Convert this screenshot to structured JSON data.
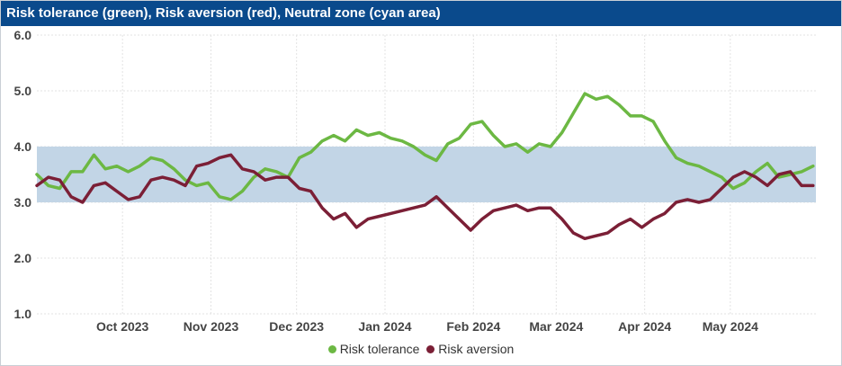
{
  "header": {
    "title": "Risk tolerance (green), Risk aversion (red), Neutral zone (cyan area)"
  },
  "colors": {
    "header_bg": "#0a4a8c",
    "risk_tolerance": "#6cb843",
    "risk_aversion": "#7b1f36",
    "neutral_zone": "#c2d5e6",
    "grid": "#e3e3e3"
  },
  "chart_data": {
    "type": "line",
    "title": "Risk tolerance (green), Risk aversion (red), Neutral zone (cyan area)",
    "xlabel": "",
    "ylabel": "",
    "ylim": [
      1.0,
      6.0
    ],
    "yticks": [
      "1.0",
      "2.0",
      "3.0",
      "4.0",
      "5.0",
      "6.0"
    ],
    "xlim": [
      "2023-09-01",
      "2024-05-31"
    ],
    "xticks": [
      {
        "date": "2023-10-01",
        "label": "Oct 2023"
      },
      {
        "date": "2023-11-01",
        "label": "Nov 2023"
      },
      {
        "date": "2023-12-01",
        "label": "Dec 2023"
      },
      {
        "date": "2024-01-01",
        "label": "Jan 2024"
      },
      {
        "date": "2024-02-01",
        "label": "Feb 2024"
      },
      {
        "date": "2024-03-01",
        "label": "Mar 2024"
      },
      {
        "date": "2024-04-01",
        "label": "Apr 2024"
      },
      {
        "date": "2024-05-01",
        "label": "May 2024"
      }
    ],
    "grid": true,
    "legend_position": "bottom",
    "neutral_zone": [
      3.0,
      4.0
    ],
    "x": [
      "2023-09-01",
      "2023-09-05",
      "2023-09-09",
      "2023-09-13",
      "2023-09-17",
      "2023-09-21",
      "2023-09-25",
      "2023-09-29",
      "2023-10-03",
      "2023-10-07",
      "2023-10-11",
      "2023-10-15",
      "2023-10-19",
      "2023-10-23",
      "2023-10-27",
      "2023-10-31",
      "2023-11-04",
      "2023-11-08",
      "2023-11-12",
      "2023-11-16",
      "2023-11-20",
      "2023-11-24",
      "2023-11-28",
      "2023-12-02",
      "2023-12-06",
      "2023-12-10",
      "2023-12-14",
      "2023-12-18",
      "2023-12-22",
      "2023-12-26",
      "2023-12-30",
      "2024-01-03",
      "2024-01-07",
      "2024-01-11",
      "2024-01-15",
      "2024-01-19",
      "2024-01-23",
      "2024-01-27",
      "2024-01-31",
      "2024-02-04",
      "2024-02-08",
      "2024-02-12",
      "2024-02-16",
      "2024-02-20",
      "2024-02-24",
      "2024-02-28",
      "2024-03-03",
      "2024-03-07",
      "2024-03-11",
      "2024-03-15",
      "2024-03-19",
      "2024-03-23",
      "2024-03-27",
      "2024-03-31",
      "2024-04-04",
      "2024-04-08",
      "2024-04-12",
      "2024-04-16",
      "2024-04-20",
      "2024-04-24",
      "2024-04-28",
      "2024-05-02",
      "2024-05-06",
      "2024-05-10",
      "2024-05-14",
      "2024-05-18",
      "2024-05-22",
      "2024-05-26",
      "2024-05-30"
    ],
    "series": [
      {
        "name": "Risk tolerance",
        "color": "#6cb843",
        "values": [
          3.5,
          3.3,
          3.25,
          3.55,
          3.55,
          3.85,
          3.6,
          3.65,
          3.55,
          3.65,
          3.8,
          3.75,
          3.6,
          3.4,
          3.3,
          3.35,
          3.1,
          3.05,
          3.2,
          3.45,
          3.6,
          3.55,
          3.45,
          3.8,
          3.9,
          4.1,
          4.2,
          4.1,
          4.3,
          4.2,
          4.25,
          4.15,
          4.1,
          4.0,
          3.85,
          3.75,
          4.05,
          4.15,
          4.4,
          4.45,
          4.2,
          4.0,
          4.05,
          3.9,
          4.05,
          4.0,
          4.25,
          4.6,
          4.95,
          4.85,
          4.9,
          4.75,
          4.55,
          4.55,
          4.45,
          4.1,
          3.8,
          3.7,
          3.65,
          3.55,
          3.45,
          3.25,
          3.35,
          3.55,
          3.7,
          3.45,
          3.5,
          3.55,
          3.65
        ]
      },
      {
        "name": "Risk aversion",
        "color": "#7b1f36",
        "values": [
          3.3,
          3.45,
          3.4,
          3.1,
          3.0,
          3.3,
          3.35,
          3.2,
          3.05,
          3.1,
          3.4,
          3.45,
          3.4,
          3.3,
          3.65,
          3.7,
          3.8,
          3.85,
          3.6,
          3.55,
          3.4,
          3.45,
          3.45,
          3.25,
          3.2,
          2.9,
          2.7,
          2.8,
          2.55,
          2.7,
          2.75,
          2.8,
          2.85,
          2.9,
          2.95,
          3.1,
          2.9,
          2.7,
          2.5,
          2.7,
          2.85,
          2.9,
          2.95,
          2.85,
          2.9,
          2.9,
          2.7,
          2.45,
          2.35,
          2.4,
          2.45,
          2.6,
          2.7,
          2.55,
          2.7,
          2.8,
          3.0,
          3.05,
          3.0,
          3.05,
          3.25,
          3.45,
          3.55,
          3.45,
          3.3,
          3.5,
          3.55,
          3.3,
          3.3
        ]
      }
    ]
  },
  "legend": {
    "items": [
      {
        "label": "Risk tolerance",
        "color": "#6cb843"
      },
      {
        "label": "Risk aversion",
        "color": "#7b1f36"
      }
    ]
  }
}
